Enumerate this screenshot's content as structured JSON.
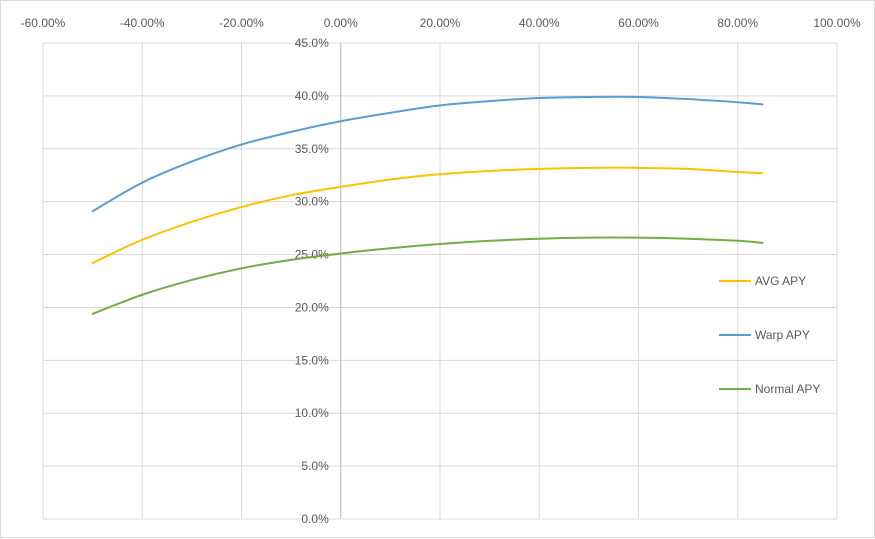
{
  "chart_data": {
    "type": "line",
    "title": "",
    "xlabel": "",
    "ylabel": "",
    "xlim": [
      -60,
      100
    ],
    "ylim": [
      0,
      45
    ],
    "x_ticks": [
      -60,
      -40,
      -20,
      0,
      20,
      40,
      60,
      80,
      100
    ],
    "x_tick_labels": [
      "-60.00%",
      "-40.00%",
      "-20.00%",
      "0.00%",
      "20.00%",
      "40.00%",
      "60.00%",
      "80.00%",
      "100.00%"
    ],
    "y_ticks": [
      0,
      5,
      10,
      15,
      20,
      25,
      30,
      35,
      40,
      45
    ],
    "y_tick_labels": [
      "0.0%",
      "5.0%",
      "10.0%",
      "15.0%",
      "20.0%",
      "25.0%",
      "30.0%",
      "35.0%",
      "40.0%",
      "45.0%"
    ],
    "grid": true,
    "legend_position": "right",
    "x": [
      -50,
      -40,
      -30,
      -20,
      -10,
      0,
      10,
      20,
      30,
      40,
      50,
      60,
      70,
      80,
      85
    ],
    "series": [
      {
        "name": "AVG APY",
        "color": "#FFC000",
        "values": [
          24.2,
          26.4,
          28.1,
          29.5,
          30.6,
          31.4,
          32.1,
          32.6,
          32.9,
          33.1,
          33.2,
          33.2,
          33.1,
          32.8,
          32.7
        ]
      },
      {
        "name": "Warp APY",
        "color": "#5B9BD5",
        "values": [
          29.1,
          31.8,
          33.8,
          35.4,
          36.6,
          37.6,
          38.4,
          39.1,
          39.5,
          39.8,
          39.9,
          39.9,
          39.7,
          39.4,
          39.2
        ]
      },
      {
        "name": "Normal APY",
        "color": "#70AD47",
        "values": [
          19.4,
          21.2,
          22.6,
          23.7,
          24.5,
          25.1,
          25.6,
          26.0,
          26.3,
          26.5,
          26.6,
          26.6,
          26.5,
          26.3,
          26.1
        ]
      }
    ]
  }
}
